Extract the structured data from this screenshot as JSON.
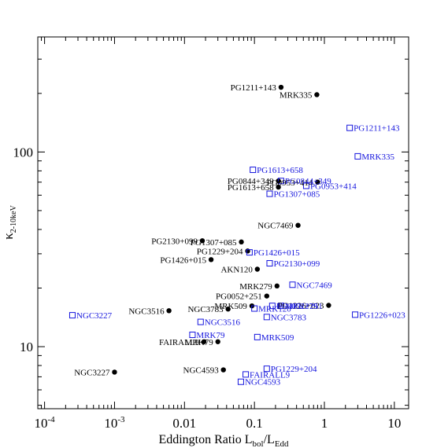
{
  "chart_data": {
    "type": "scatter",
    "xlabel": "Eddington Ratio L_bol/L_Edd",
    "ylabel": "κ_2-10keV",
    "x_scale": "log",
    "y_scale": "log",
    "xlim": [
      8e-05,
      16
    ],
    "ylim": [
      4.8,
      390
    ],
    "x_ticks": [
      {
        "value": 0.0001,
        "base": "10",
        "exp": "-4"
      },
      {
        "value": 0.001,
        "base": "10",
        "exp": "-3"
      },
      {
        "value": 0.01,
        "base": "0.01",
        "exp": ""
      },
      {
        "value": 0.1,
        "base": "0.1",
        "exp": ""
      },
      {
        "value": 1,
        "base": "1",
        "exp": ""
      },
      {
        "value": 10,
        "base": "10",
        "exp": ""
      }
    ],
    "y_ticks": [
      {
        "value": 10,
        "label": "10"
      },
      {
        "value": 100,
        "label": "100"
      }
    ],
    "grid": false,
    "legend": "none",
    "series": [
      {
        "marker": "filled-circle",
        "color": "#000000",
        "points": [
          {
            "name": "PG1211+143",
            "x": 0.24,
            "y": 215
          },
          {
            "name": "MRK335",
            "x": 0.78,
            "y": 197
          },
          {
            "name": "PG0844+349",
            "x": 0.22,
            "y": 71
          },
          {
            "name": "PG0953+414",
            "x": 0.8,
            "y": 70
          },
          {
            "name": "PG1613+658",
            "x": 0.22,
            "y": 66
          },
          {
            "name": "NGC7469",
            "x": 0.42,
            "y": 42
          },
          {
            "name": "PG2130+099",
            "x": 0.018,
            "y": 35
          },
          {
            "name": "PG1307+085",
            "x": 0.065,
            "y": 34.5
          },
          {
            "name": "PG1229+204",
            "x": 0.08,
            "y": 31
          },
          {
            "name": "PG1426+015",
            "x": 0.024,
            "y": 28
          },
          {
            "name": "AKN120",
            "x": 0.11,
            "y": 25
          },
          {
            "name": "MRK279",
            "x": 0.21,
            "y": 20.5
          },
          {
            "name": "PG0052+251",
            "x": 0.15,
            "y": 18.2
          },
          {
            "name": "PG1226+023",
            "x": 1.15,
            "y": 16.3
          },
          {
            "name": "MRK509",
            "x": 0.092,
            "y": 16.2
          },
          {
            "name": "NGC3783",
            "x": 0.042,
            "y": 15.6
          },
          {
            "name": "NGC3516",
            "x": 0.006,
            "y": 15.3
          },
          {
            "name": "FAIRALL9",
            "x": 0.019,
            "y": 10.6
          },
          {
            "name": "MRK79",
            "x": 0.03,
            "y": 10.6
          },
          {
            "name": "NGC4593",
            "x": 0.036,
            "y": 7.6
          },
          {
            "name": "NGC3227",
            "x": 0.001,
            "y": 7.4
          }
        ]
      },
      {
        "marker": "open-square",
        "color": "#1515dd",
        "points": [
          {
            "name": "PG1211+143",
            "x": 2.3,
            "y": 133
          },
          {
            "name": "MRK335",
            "x": 3.0,
            "y": 95
          },
          {
            "name": "PG1613+658",
            "x": 0.095,
            "y": 81
          },
          {
            "name": "PG0844+349",
            "x": 0.24,
            "y": 71
          },
          {
            "name": "PG0953+414",
            "x": 0.55,
            "y": 67
          },
          {
            "name": "PG1307+085",
            "x": 0.165,
            "y": 61
          },
          {
            "name": "PG1426+015",
            "x": 0.085,
            "y": 30.5
          },
          {
            "name": "PG2130+099",
            "x": 0.165,
            "y": 26.8
          },
          {
            "name": "NGC7469",
            "x": 0.35,
            "y": 20.8
          },
          {
            "name": "PG0052+251",
            "x": 0.18,
            "y": 16.2
          },
          {
            "name": "MRK279",
            "x": 0.24,
            "y": 16.2
          },
          {
            "name": "NGC3783",
            "x": 0.15,
            "y": 14.2
          },
          {
            "name": "PG1226+023",
            "x": 2.75,
            "y": 14.6
          },
          {
            "name": "MRK120",
            "x": 0.1,
            "y": 15.7
          },
          {
            "name": "NGC3227",
            "x": 0.00025,
            "y": 14.5
          },
          {
            "name": "NGC3516",
            "x": 0.017,
            "y": 13.4
          },
          {
            "name": "MRK79",
            "x": 0.013,
            "y": 11.5
          },
          {
            "name": "MRK509",
            "x": 0.11,
            "y": 11.2
          },
          {
            "name": "PG1229+204",
            "x": 0.15,
            "y": 7.7
          },
          {
            "name": "FAIRALL9",
            "x": 0.075,
            "y": 7.2
          },
          {
            "name": "NGC4593",
            "x": 0.064,
            "y": 6.6
          }
        ]
      }
    ]
  }
}
